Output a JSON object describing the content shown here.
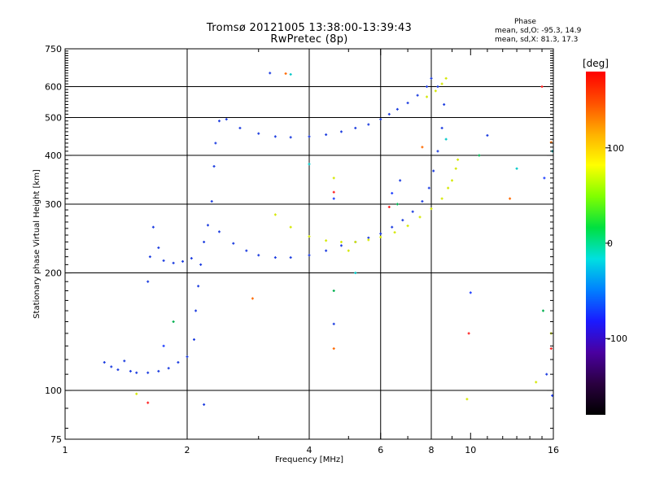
{
  "header": {
    "title_line1": "Tromsø 20121005 13:38:00-13:39:43",
    "title_line2": "RwPretec (8p)"
  },
  "phase_info": {
    "title": "Phase",
    "o_line": "mean, sd,O: -95.3, 14.9",
    "x_line": "mean, sd,X:  81.3, 17.3"
  },
  "colorbar": {
    "label": "[deg]",
    "range": [
      -180,
      180
    ],
    "ticks": [
      {
        "value": 100,
        "label": "100"
      },
      {
        "value": 0,
        "label": "0"
      },
      {
        "value": -100,
        "label": "-100"
      }
    ],
    "colors": [
      "#000000",
      "#2a0040",
      "#4a00a0",
      "#1a1aff",
      "#0080ff",
      "#00e0e0",
      "#00e040",
      "#80ff00",
      "#ffff00",
      "#ffb000",
      "#ff5000",
      "#ff0000"
    ]
  },
  "chart_data": {
    "type": "scatter",
    "title": "Tromsø 20121005 13:38:00-13:39:43",
    "subtitle": "RwPretec (8p)",
    "xlabel": "Frequency [MHz]",
    "ylabel": "Stationary phase Virtual Height [km]",
    "x_scale": "log",
    "y_scale": "log",
    "xlim": [
      1,
      16
    ],
    "ylim": [
      75,
      750
    ],
    "xticks": [
      1,
      2,
      4,
      6,
      8,
      10,
      16
    ],
    "yticks": [
      75,
      100,
      200,
      300,
      400,
      500,
      600,
      750
    ],
    "x_gridlines": [
      2,
      4,
      6,
      8
    ],
    "y_gridlines": [
      100,
      200,
      300,
      400,
      500,
      600
    ],
    "series": [
      {
        "id": "O",
        "color": "#1f3fe0",
        "points": [
          [
            1.25,
            118
          ],
          [
            1.3,
            115
          ],
          [
            1.35,
            113
          ],
          [
            1.4,
            119
          ],
          [
            1.45,
            112
          ],
          [
            1.5,
            111
          ],
          [
            1.6,
            111
          ],
          [
            1.7,
            112
          ],
          [
            1.8,
            114
          ],
          [
            1.9,
            118
          ],
          [
            2.0,
            122
          ],
          [
            2.08,
            135
          ],
          [
            2.1,
            160
          ],
          [
            2.13,
            185
          ],
          [
            2.16,
            210
          ],
          [
            2.2,
            240
          ],
          [
            2.25,
            265
          ],
          [
            2.3,
            305
          ],
          [
            2.33,
            375
          ],
          [
            2.35,
            430
          ],
          [
            2.4,
            490
          ],
          [
            2.5,
            495
          ],
          [
            2.7,
            470
          ],
          [
            3.0,
            455
          ],
          [
            3.3,
            447
          ],
          [
            3.6,
            445
          ],
          [
            4.0,
            447
          ],
          [
            4.4,
            452
          ],
          [
            4.8,
            460
          ],
          [
            5.2,
            470
          ],
          [
            5.6,
            480
          ],
          [
            6.0,
            495
          ],
          [
            6.3,
            510
          ],
          [
            6.6,
            525
          ],
          [
            7.0,
            545
          ],
          [
            7.4,
            570
          ],
          [
            7.8,
            600
          ],
          [
            8.0,
            630
          ],
          [
            8.3,
            600
          ],
          [
            1.6,
            190
          ],
          [
            1.62,
            220
          ],
          [
            1.65,
            262
          ],
          [
            1.7,
            232
          ],
          [
            1.75,
            215
          ],
          [
            1.85,
            212
          ],
          [
            1.95,
            214
          ],
          [
            2.05,
            218
          ],
          [
            2.4,
            255
          ],
          [
            2.6,
            238
          ],
          [
            2.8,
            228
          ],
          [
            3.0,
            222
          ],
          [
            3.3,
            219
          ],
          [
            3.6,
            219
          ],
          [
            4.0,
            222
          ],
          [
            4.4,
            228
          ],
          [
            4.8,
            235
          ],
          [
            5.2,
            240
          ],
          [
            5.6,
            246
          ],
          [
            6.0,
            252
          ],
          [
            6.4,
            262
          ],
          [
            6.8,
            273
          ],
          [
            7.2,
            287
          ],
          [
            7.6,
            305
          ],
          [
            7.9,
            330
          ],
          [
            8.1,
            365
          ],
          [
            8.3,
            410
          ],
          [
            8.5,
            470
          ],
          [
            8.6,
            540
          ]
        ]
      },
      {
        "id": "X",
        "color": "#d4e800",
        "points": [
          [
            3.3,
            282
          ],
          [
            3.6,
            262
          ],
          [
            4.0,
            248
          ],
          [
            4.4,
            242
          ],
          [
            4.8,
            240
          ],
          [
            5.2,
            240
          ],
          [
            5.6,
            243
          ],
          [
            6.0,
            247
          ],
          [
            6.5,
            254
          ],
          [
            7.0,
            264
          ],
          [
            7.5,
            278
          ],
          [
            8.0,
            292
          ],
          [
            8.5,
            310
          ],
          [
            8.8,
            330
          ],
          [
            9.0,
            345
          ],
          [
            9.2,
            370
          ],
          [
            9.3,
            390
          ],
          [
            7.8,
            565
          ],
          [
            8.2,
            585
          ],
          [
            8.5,
            610
          ],
          [
            8.7,
            630
          ]
        ]
      },
      {
        "id": "noise",
        "color": "multi",
        "points": [
          [
            3.2,
            650
          ],
          [
            3.5,
            648
          ],
          [
            3.6,
            645
          ],
          [
            1.5,
            98
          ],
          [
            1.6,
            93
          ],
          [
            1.75,
            130
          ],
          [
            1.85,
            150
          ],
          [
            2.2,
            92
          ],
          [
            2.9,
            172
          ],
          [
            4.0,
            380
          ],
          [
            4.6,
            350
          ],
          [
            4.6,
            322
          ],
          [
            4.6,
            310
          ],
          [
            4.6,
            180
          ],
          [
            4.6,
            148
          ],
          [
            4.6,
            128
          ],
          [
            5.2,
            200
          ],
          [
            5.0,
            228
          ],
          [
            6.3,
            295
          ],
          [
            6.4,
            320
          ],
          [
            6.6,
            300
          ],
          [
            6.7,
            345
          ],
          [
            7.6,
            420
          ],
          [
            8.7,
            440
          ],
          [
            9.8,
            95
          ],
          [
            9.9,
            140
          ],
          [
            10.0,
            178
          ],
          [
            10.5,
            400
          ],
          [
            11.0,
            450
          ],
          [
            12.5,
            310
          ],
          [
            13.0,
            370
          ],
          [
            14.5,
            105
          ],
          [
            15.0,
            600
          ],
          [
            15.2,
            350
          ],
          [
            15.1,
            160
          ],
          [
            15.4,
            110
          ],
          [
            15.8,
            432
          ],
          [
            15.9,
            410
          ],
          [
            15.8,
            140
          ],
          [
            15.8,
            128
          ],
          [
            15.9,
            97
          ]
        ]
      }
    ]
  }
}
